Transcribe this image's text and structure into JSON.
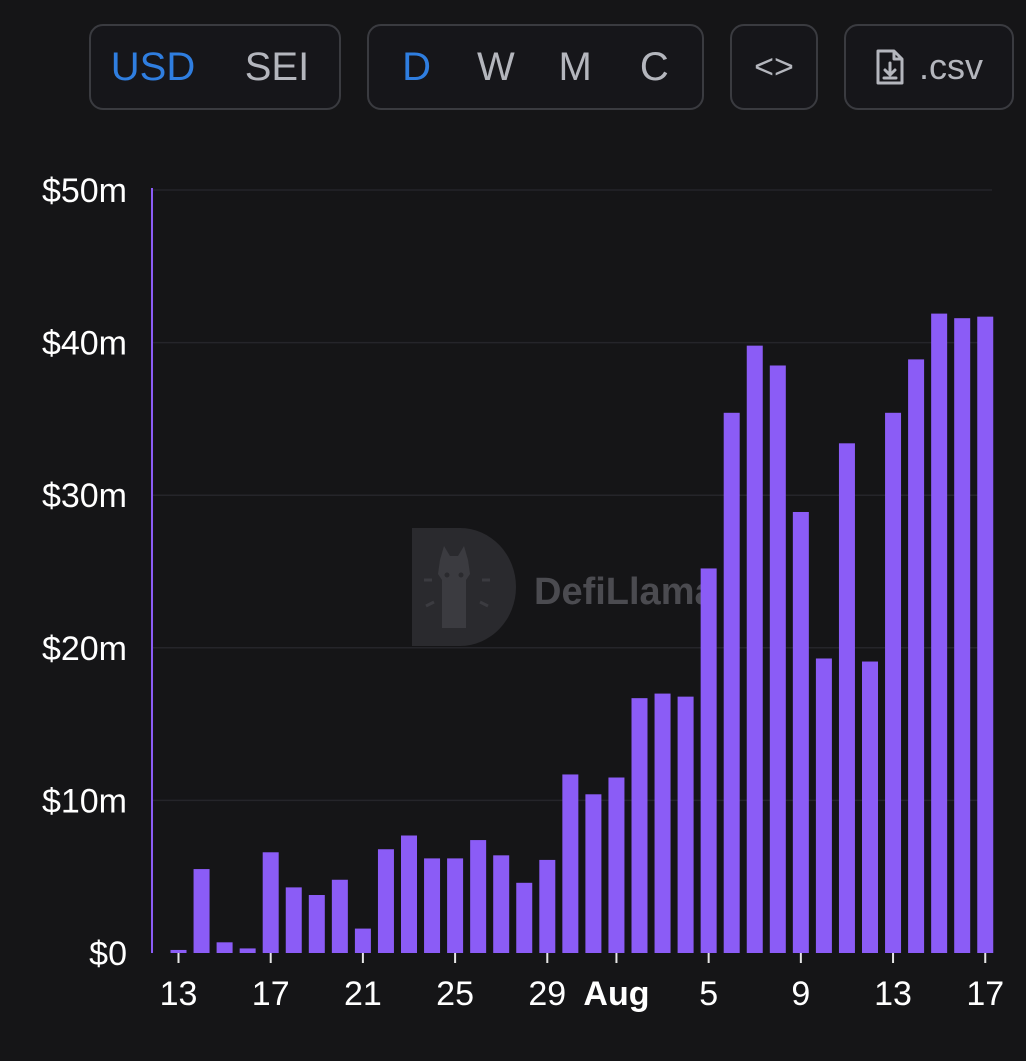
{
  "toolbar": {
    "currency": {
      "options": [
        "USD",
        "SEI"
      ],
      "active": "USD"
    },
    "period": {
      "options": [
        "D",
        "W",
        "M",
        "C"
      ],
      "active": "D"
    },
    "embed_label": "<>",
    "csv_label": ".csv"
  },
  "watermark": "DefiLlama",
  "colors": {
    "background": "#151517",
    "bar": "#8b5cf6",
    "accent": "#2f7ee0",
    "button_text": "#b4b6bd",
    "border": "#3a3b40"
  },
  "chart_data": {
    "type": "bar",
    "title": "",
    "xlabel": "",
    "ylabel": "",
    "ylim": [
      0,
      50000000
    ],
    "y_ticks": [
      {
        "value": 0,
        "label": "$0"
      },
      {
        "value": 10000000,
        "label": "$10m"
      },
      {
        "value": 20000000,
        "label": "$20m"
      },
      {
        "value": 30000000,
        "label": "$30m"
      },
      {
        "value": 40000000,
        "label": "$40m"
      },
      {
        "value": 50000000,
        "label": "$50m"
      }
    ],
    "x_ticks": [
      {
        "index": 0,
        "label": "13",
        "bold": false
      },
      {
        "index": 4,
        "label": "17",
        "bold": false
      },
      {
        "index": 8,
        "label": "21",
        "bold": false
      },
      {
        "index": 12,
        "label": "25",
        "bold": false
      },
      {
        "index": 16,
        "label": "29",
        "bold": false
      },
      {
        "index": 19,
        "label": "Aug",
        "bold": true
      },
      {
        "index": 23,
        "label": "5",
        "bold": false
      },
      {
        "index": 27,
        "label": "9",
        "bold": false
      },
      {
        "index": 31,
        "label": "13",
        "bold": false
      },
      {
        "index": 35,
        "label": "17",
        "bold": false
      }
    ],
    "categories": [
      "Jul 13",
      "Jul 14",
      "Jul 15",
      "Jul 16",
      "Jul 17",
      "Jul 18",
      "Jul 19",
      "Jul 20",
      "Jul 21",
      "Jul 22",
      "Jul 23",
      "Jul 24",
      "Jul 25",
      "Jul 26",
      "Jul 27",
      "Jul 28",
      "Jul 29",
      "Jul 30",
      "Jul 31",
      "Aug 1",
      "Aug 2",
      "Aug 3",
      "Aug 4",
      "Aug 5",
      "Aug 6",
      "Aug 7",
      "Aug 8",
      "Aug 9",
      "Aug 10",
      "Aug 11",
      "Aug 12",
      "Aug 13",
      "Aug 14",
      "Aug 15",
      "Aug 16",
      "Aug 17"
    ],
    "values": [
      200000,
      5500000,
      700000,
      300000,
      6600000,
      4300000,
      3800000,
      4800000,
      1600000,
      6800000,
      7700000,
      6200000,
      6200000,
      7400000,
      6400000,
      4600000,
      6100000,
      11700000,
      10400000,
      11500000,
      16700000,
      17000000,
      16800000,
      25200000,
      35400000,
      39800000,
      38500000,
      28900000,
      19300000,
      33400000,
      19100000,
      35400000,
      38900000,
      41900000,
      41600000,
      41700000
    ]
  }
}
